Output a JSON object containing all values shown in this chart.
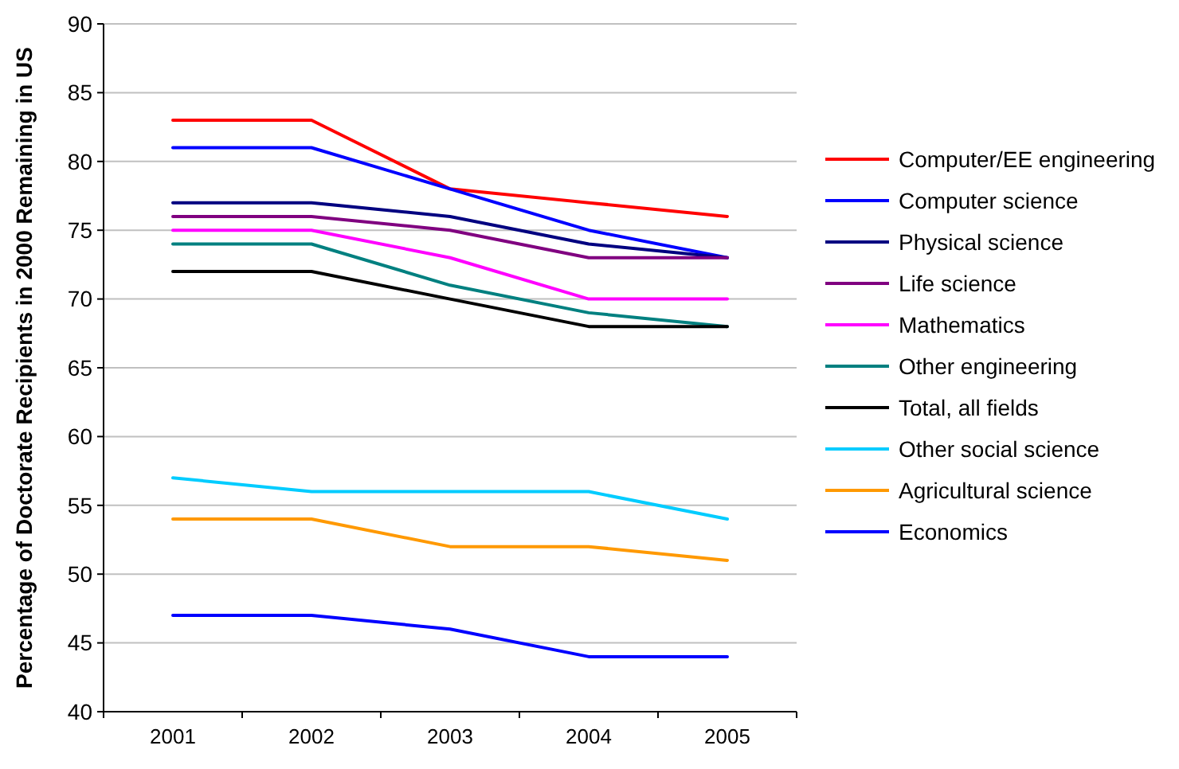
{
  "chart_data": {
    "type": "line",
    "ylabel": "Percentage of Doctorate Recipients in 2000 Remaining in US",
    "categories": [
      "2001",
      "2002",
      "2003",
      "2004",
      "2005"
    ],
    "ylim": [
      40,
      90
    ],
    "yticks": [
      40,
      45,
      50,
      55,
      60,
      65,
      70,
      75,
      80,
      85,
      90
    ],
    "grid": "y",
    "legend": "right",
    "marker": "none",
    "line_style": "solid",
    "series": [
      {
        "name": "Computer/EE engineering",
        "color": "#ff0000",
        "values": [
          83,
          83,
          78,
          77,
          76
        ]
      },
      {
        "name": "Computer science",
        "color": "#0000ff",
        "values": [
          81,
          81,
          78,
          75,
          73
        ]
      },
      {
        "name": "Physical science",
        "color": "#000080",
        "values": [
          77,
          77,
          76,
          74,
          73
        ]
      },
      {
        "name": "Life science",
        "color": "#800080",
        "values": [
          76,
          76,
          75,
          73,
          73
        ]
      },
      {
        "name": "Mathematics",
        "color": "#ff00ff",
        "values": [
          75,
          75,
          73,
          70,
          70
        ]
      },
      {
        "name": "Other engineering",
        "color": "#008080",
        "values": [
          74,
          74,
          71,
          69,
          68
        ]
      },
      {
        "name": "Total, all fields",
        "color": "#000000",
        "values": [
          72,
          72,
          70,
          68,
          68
        ]
      },
      {
        "name": "Other social science",
        "color": "#00ccff",
        "values": [
          57,
          56,
          56,
          56,
          54
        ]
      },
      {
        "name": "Agricultural science",
        "color": "#ff9900",
        "values": [
          54,
          54,
          52,
          52,
          51
        ]
      },
      {
        "name": "Economics",
        "color": "#0000ff",
        "values": [
          47,
          47,
          46,
          44,
          44
        ]
      }
    ]
  }
}
